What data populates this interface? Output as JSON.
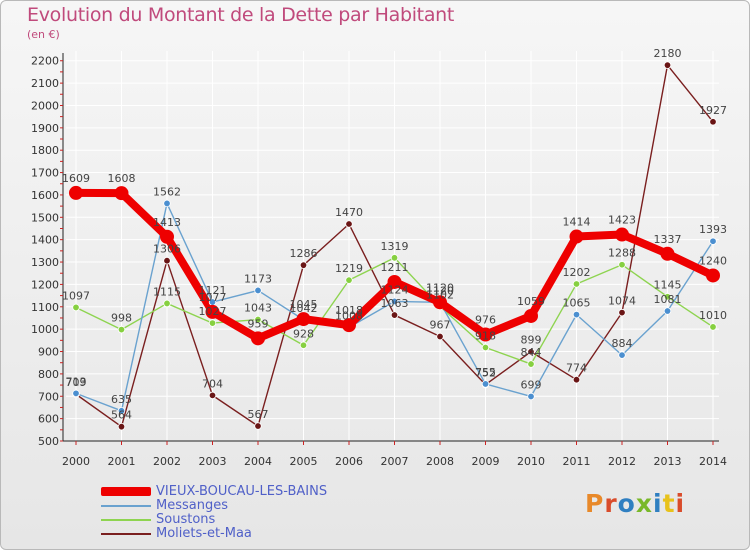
{
  "header": {
    "title": "Evolution du Montant de la Dette par Habitant",
    "unit": "(en €)"
  },
  "brand": {
    "text": "Proxiti",
    "colors": [
      "#e8892a",
      "#d94c2b",
      "#2f7fc1",
      "#79b829",
      "#2f7fc1",
      "#e8c21b",
      "#d94c2b"
    ]
  },
  "chart_data": {
    "type": "line",
    "title": "Evolution du Montant de la Dette par Habitant",
    "subtitle": "(en €)",
    "xlabel": "",
    "ylabel": "",
    "ylim": [
      500,
      2200
    ],
    "yticks": [
      500,
      600,
      700,
      800,
      900,
      1000,
      1100,
      1200,
      1300,
      1400,
      1500,
      1600,
      1700,
      1800,
      1900,
      2000,
      2100,
      2200
    ],
    "grid": true,
    "categories": [
      "2000",
      "2001",
      "2002",
      "2003",
      "2004",
      "2005",
      "2006",
      "2007",
      "2008",
      "2009",
      "2010",
      "2011",
      "2012",
      "2013",
      "2014"
    ],
    "series": [
      {
        "name": "Moliets-et-Maa",
        "color": "#7a1f1f",
        "marker_fill": "#6a1515",
        "values": [
          709,
          564,
          1306,
          704,
          567,
          1286,
          1470,
          1063,
          967,
          752,
          899,
          774,
          1074,
          2180,
          1927
        ]
      },
      {
        "name": "Soustons",
        "color": "#8ed450",
        "marker_fill": "#86d040",
        "values": [
          1097,
          998,
          1115,
          1027,
          1043,
          928,
          1219,
          1319,
          1102,
          918,
          844,
          1202,
          1288,
          1145,
          1010
        ]
      },
      {
        "name": "Messanges",
        "color": "#6aa2cf",
        "marker_fill": "#4b8fd0",
        "values": [
          713,
          635,
          1562,
          1121,
          1173,
          1042,
          1008,
          1124,
          1120,
          755,
          699,
          1065,
          884,
          1081,
          1393
        ]
      },
      {
        "name": "VIEUX-BOUCAU-LES-BAINS",
        "color": "#ee0000",
        "marker_fill": "#ee0000",
        "values": [
          1609,
          1608,
          1413,
          1077,
          959,
          1045,
          1018,
          1211,
          1120,
          976,
          1059,
          1414,
          1423,
          1337,
          1240
        ]
      }
    ],
    "legend": [
      "VIEUX-BOUCAU-LES-BAINS",
      "Messanges",
      "Soustons",
      "Moliets-et-Maa"
    ],
    "legend_position": "bottom-left"
  }
}
